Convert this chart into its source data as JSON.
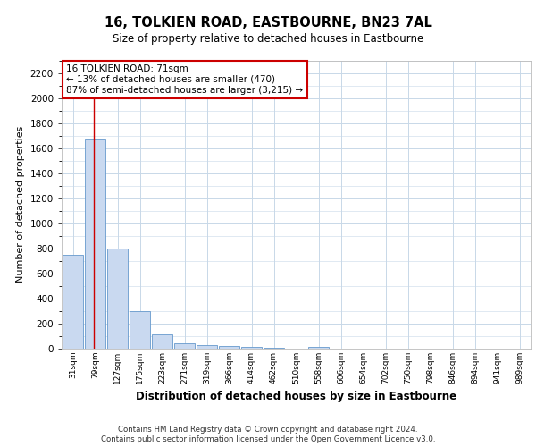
{
  "title1": "16, TOLKIEN ROAD, EASTBOURNE, BN23 7AL",
  "title2": "Size of property relative to detached houses in Eastbourne",
  "xlabel": "Distribution of detached houses by size in Eastbourne",
  "ylabel": "Number of detached properties",
  "categories": [
    "31sqm",
    "79sqm",
    "127sqm",
    "175sqm",
    "223sqm",
    "271sqm",
    "319sqm",
    "366sqm",
    "414sqm",
    "462sqm",
    "510sqm",
    "558sqm",
    "606sqm",
    "654sqm",
    "702sqm",
    "750sqm",
    "798sqm",
    "846sqm",
    "894sqm",
    "941sqm",
    "989sqm"
  ],
  "values": [
    750,
    1670,
    800,
    300,
    115,
    40,
    28,
    22,
    16,
    10,
    0,
    15,
    0,
    0,
    0,
    0,
    0,
    0,
    0,
    0,
    0
  ],
  "bar_color": "#c9d9f0",
  "bar_edge_color": "#6699cc",
  "ylim": [
    0,
    2300
  ],
  "yticks": [
    0,
    200,
    400,
    600,
    800,
    1000,
    1200,
    1400,
    1600,
    1800,
    2000,
    2200
  ],
  "property_line_x": 0.95,
  "annotation_text": "16 TOLKIEN ROAD: 71sqm\n← 13% of detached houses are smaller (470)\n87% of semi-detached houses are larger (3,215) →",
  "annotation_box_color": "#ffffff",
  "annotation_border_color": "#cc0000",
  "property_line_color": "#cc0000",
  "footnote1": "Contains HM Land Registry data © Crown copyright and database right 2024.",
  "footnote2": "Contains public sector information licensed under the Open Government Licence v3.0.",
  "bg_color": "#ffffff",
  "grid_color": "#c8d8e8"
}
